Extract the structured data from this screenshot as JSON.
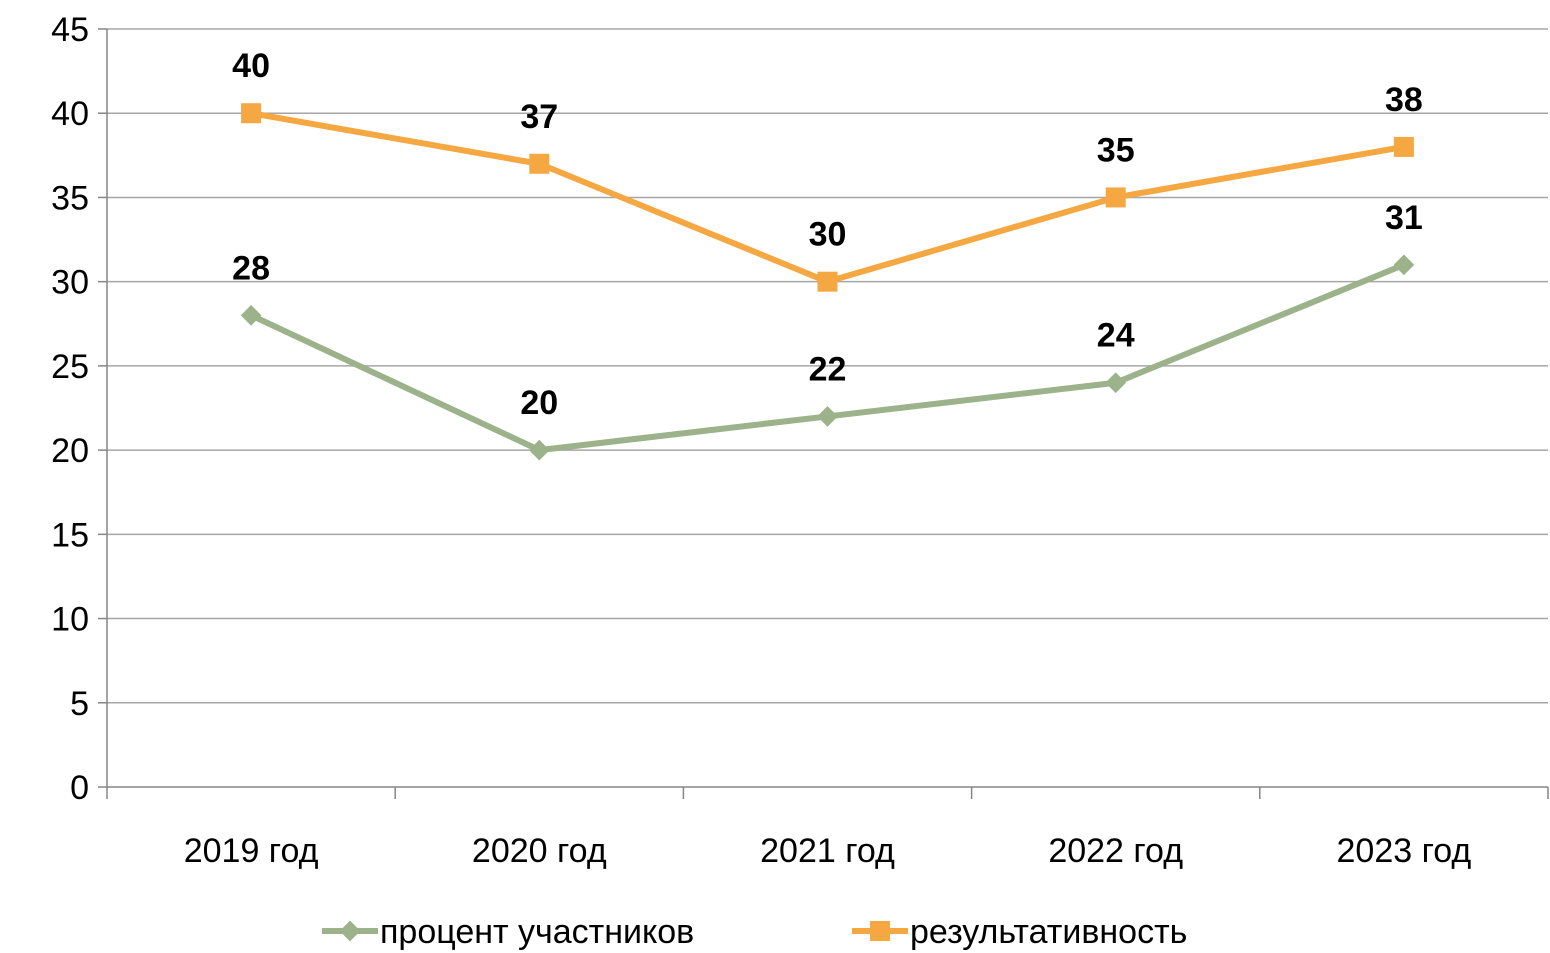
{
  "chart_data": {
    "type": "line",
    "title": "",
    "xlabel": "",
    "ylabel": "",
    "categories": [
      "2019 год",
      "2020 год",
      "2021 год",
      "2022 год",
      "2023 год"
    ],
    "ylim": [
      0,
      45
    ],
    "yticks": [
      0,
      5,
      10,
      15,
      20,
      25,
      30,
      35,
      40,
      45
    ],
    "grid": "horizontal",
    "legend_position": "bottom",
    "series": [
      {
        "name": "процент участников",
        "values": [
          28,
          20,
          22,
          24,
          31
        ],
        "color": "#9bb28a",
        "marker": "diamond"
      },
      {
        "name": "результативность",
        "values": [
          40,
          37,
          30,
          35,
          38
        ],
        "color": "#f5a742",
        "marker": "square"
      }
    ]
  }
}
